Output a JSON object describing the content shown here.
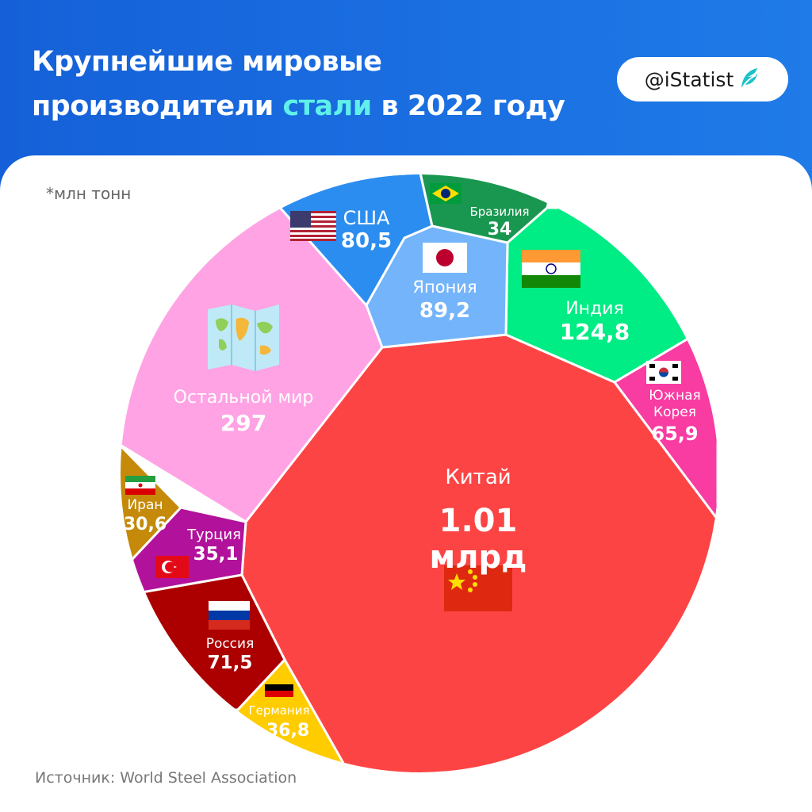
{
  "header": {
    "title_part1": "Крупнейшие мировые",
    "title_part2": "производители",
    "title_accent": "стали",
    "title_part3": "в 2022 году",
    "brand": "@iStatist"
  },
  "unit_note": "*млн тонн",
  "source": "Источник: World Steel Association",
  "colors": {
    "header": "#1a6fe3",
    "accent": "#5ff0ea"
  },
  "chart_data": {
    "type": "voronoi-treemap",
    "unit": "млн тонн",
    "cells": [
      {
        "name": "Китай",
        "value_label": "1.01 млрд",
        "value": 1010,
        "color": "#fd4444",
        "flag": "china"
      },
      {
        "name": "Остальной мир",
        "value_label": "297",
        "value": 297,
        "color": "#ffa3e4",
        "flag": "world-map"
      },
      {
        "name": "Индия",
        "value_label": "124,8",
        "value": 124.8,
        "color": "#00ec84",
        "flag": "india"
      },
      {
        "name": "Япония",
        "value_label": "89,2",
        "value": 89.2,
        "color": "#74b4fb",
        "flag": "japan"
      },
      {
        "name": "США",
        "value_label": "80,5",
        "value": 80.5,
        "color": "#2b8df0",
        "flag": "usa"
      },
      {
        "name": "Россия",
        "value_label": "71,5",
        "value": 71.5,
        "color": "#ac0000",
        "flag": "russia"
      },
      {
        "name": "Южная Корея",
        "value_label": "65,9",
        "value": 65.9,
        "color": "#f83ca2",
        "flag": "south-korea"
      },
      {
        "name": "Германия",
        "value_label": "36,8",
        "value": 36.8,
        "color": "#ffcc00",
        "flag": "germany"
      },
      {
        "name": "Турция",
        "value_label": "35,1",
        "value": 35.1,
        "color": "#b2129b",
        "flag": "turkey"
      },
      {
        "name": "Бразилия",
        "value_label": "34",
        "value": 34,
        "color": "#199750",
        "flag": "brazil"
      },
      {
        "name": "Иран",
        "value_label": "30,6",
        "value": 30.6,
        "color": "#c58a0a",
        "flag": "iran"
      }
    ]
  }
}
